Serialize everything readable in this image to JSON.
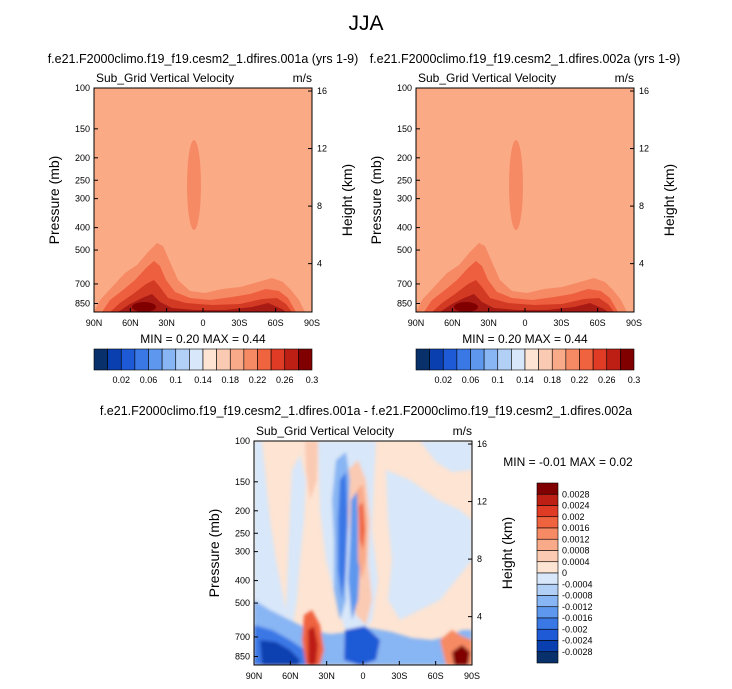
{
  "figure": {
    "title": "JJA"
  },
  "chart_data": [
    {
      "type": "heatmap",
      "title": "f.e21.F2000climo.f19_f19.cesm2_1.dfires.001a (yrs 1-9)",
      "subtitle": "Sub_Grid Vertical Velocity",
      "units": "m/s",
      "ylabel": "Pressure (mb)",
      "ylabel_right": "Height (km)",
      "x_ticks": [
        "90N",
        "60N",
        "30N",
        "0",
        "30S",
        "60S",
        "90S"
      ],
      "x_values": [
        90,
        60,
        30,
        0,
        -30,
        -60,
        -90
      ],
      "xlim": [
        90,
        -90
      ],
      "y_ticks": [
        "100",
        "150",
        "200",
        "250",
        "300",
        "400",
        "500",
        "700",
        "850"
      ],
      "y_values": [
        100,
        150,
        200,
        250,
        300,
        400,
        500,
        700,
        850
      ],
      "ylim": [
        100,
        925
      ],
      "y_scale": "log",
      "y_right_ticks": [
        "4",
        "8",
        "12",
        "16"
      ],
      "y_right_values": [
        4,
        8,
        12,
        16
      ],
      "stats": "MIN =  0.20  MAX =  0.44",
      "min": 0.2,
      "max": 0.44,
      "colorbar_labels": [
        "0.02",
        "0.06",
        "0.1",
        "0.14",
        "0.18",
        "0.22",
        "0.26",
        "0.3"
      ],
      "colorbar_colors": [
        "#08306b",
        "#0a3fb0",
        "#1e5ad6",
        "#3a78e6",
        "#5d97ee",
        "#88b5f3",
        "#b2cff6",
        "#d8e7f9",
        "#fde4d3",
        "#fbcab2",
        "#f9aa89",
        "#f68a64",
        "#f0633f",
        "#e03c25",
        "#bd1f15",
        "#800000"
      ],
      "background_value": 0.2
    },
    {
      "type": "heatmap",
      "title": "f.e21.F2000climo.f19_f19.cesm2_1.dfires.002a (yrs 1-9)",
      "subtitle": "Sub_Grid Vertical Velocity",
      "units": "m/s",
      "ylabel": "Pressure (mb)",
      "ylabel_right": "Height (km)",
      "x_ticks": [
        "90N",
        "60N",
        "30N",
        "0",
        "30S",
        "60S",
        "90S"
      ],
      "x_values": [
        90,
        60,
        30,
        0,
        -30,
        -60,
        -90
      ],
      "xlim": [
        90,
        -90
      ],
      "y_ticks": [
        "100",
        "150",
        "200",
        "250",
        "300",
        "400",
        "500",
        "700",
        "850"
      ],
      "y_values": [
        100,
        150,
        200,
        250,
        300,
        400,
        500,
        700,
        850
      ],
      "ylim": [
        100,
        925
      ],
      "y_scale": "log",
      "y_right_ticks": [
        "4",
        "8",
        "12",
        "16"
      ],
      "y_right_values": [
        4,
        8,
        12,
        16
      ],
      "stats": "MIN =  0.20  MAX =  0.44",
      "min": 0.2,
      "max": 0.44,
      "colorbar_labels": [
        "0.02",
        "0.06",
        "0.1",
        "0.14",
        "0.18",
        "0.22",
        "0.26",
        "0.3"
      ],
      "colorbar_colors": [
        "#08306b",
        "#0a3fb0",
        "#1e5ad6",
        "#3a78e6",
        "#5d97ee",
        "#88b5f3",
        "#b2cff6",
        "#d8e7f9",
        "#fde4d3",
        "#fbcab2",
        "#f9aa89",
        "#f68a64",
        "#f0633f",
        "#e03c25",
        "#bd1f15",
        "#800000"
      ],
      "background_value": 0.2
    },
    {
      "type": "heatmap",
      "title": "f.e21.F2000climo.f19_f19.cesm2_1.dfires.001a - f.e21.F2000climo.f19_f19.cesm2_1.dfires.002a",
      "subtitle": "Sub_Grid Vertical Velocity",
      "units": "m/s",
      "ylabel": "Pressure (mb)",
      "ylabel_right": "Height (km)",
      "x_ticks": [
        "90N",
        "60N",
        "30N",
        "0",
        "30S",
        "60S",
        "90S"
      ],
      "x_values": [
        90,
        60,
        30,
        0,
        -30,
        -60,
        -90
      ],
      "xlim": [
        90,
        -90
      ],
      "y_ticks": [
        "100",
        "150",
        "200",
        "250",
        "300",
        "400",
        "500",
        "700",
        "850"
      ],
      "y_values": [
        100,
        150,
        200,
        250,
        300,
        400,
        500,
        700,
        850
      ],
      "ylim": [
        100,
        925
      ],
      "y_scale": "log",
      "y_right_ticks": [
        "4",
        "8",
        "12",
        "16"
      ],
      "y_right_values": [
        4,
        8,
        12,
        16
      ],
      "stats": "MIN = -0.01  MAX =  0.02",
      "min": -0.01,
      "max": 0.02,
      "colorbar_labels": [
        "0.0028",
        "0.0024",
        "0.002",
        "0.0016",
        "0.0012",
        "0.0008",
        "0.0004",
        "0",
        "-0.0004",
        "-0.0008",
        "-0.0012",
        "-0.0016",
        "-0.002",
        "-0.0024",
        "-0.0028"
      ],
      "colorbar_colors": [
        "#800000",
        "#bd1f15",
        "#e03c25",
        "#f0633f",
        "#f68a64",
        "#f9aa89",
        "#fbcab2",
        "#fde4d3",
        "#d8e7f9",
        "#b2cff6",
        "#88b5f3",
        "#5d97ee",
        "#3a78e6",
        "#1e5ad6",
        "#0a3fb0",
        "#08306b"
      ],
      "background_value": 0.0
    }
  ]
}
